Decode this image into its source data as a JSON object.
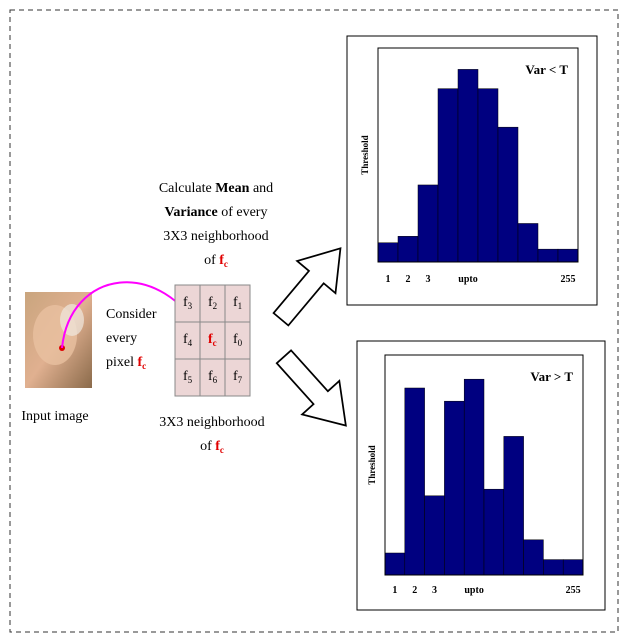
{
  "calc_text": {
    "calculate": "Calculate",
    "mean": "Mean",
    "and": "and",
    "variance": "Variance",
    "of_every": "of every",
    "neighborhood": "3X3 neighborhood",
    "of": "of",
    "f": "f",
    "c": "c"
  },
  "consider_text": {
    "line1": "Consider",
    "line2": "every",
    "pixel": "pixel",
    "f": "f",
    "c": "c"
  },
  "input_label": "Input image",
  "grid_label": {
    "neighborhood": "3X3 neighborhood",
    "of": "of",
    "f": "f",
    "c": "c"
  },
  "grid": [
    [
      {
        "base": "f",
        "sub": "3"
      },
      {
        "base": "f",
        "sub": "2"
      },
      {
        "base": "f",
        "sub": "1"
      }
    ],
    [
      {
        "base": "f",
        "sub": "4"
      },
      {
        "base": "f",
        "sub": "c"
      },
      {
        "base": "f",
        "sub": "0"
      }
    ],
    [
      {
        "base": "f",
        "sub": "5"
      },
      {
        "base": "f",
        "sub": "6"
      },
      {
        "base": "f",
        "sub": "7"
      }
    ]
  ],
  "histograms": [
    {
      "label": "Var < T",
      "y_label": "Threshold",
      "x_labels": [
        "1",
        "2",
        "3",
        "upto",
        "255"
      ],
      "values": [
        9,
        12,
        36,
        81,
        90,
        81,
        63,
        18,
        6,
        6
      ],
      "ylim": [
        0,
        100
      ],
      "color": "#000080"
    },
    {
      "label": "Var > T",
      "y_label": "Threshold",
      "x_labels": [
        "1",
        "2",
        "3",
        "upto",
        "255"
      ],
      "values": [
        10,
        85,
        36,
        79,
        89,
        39,
        63,
        16,
        7,
        7
      ],
      "ylim": [
        0,
        100
      ],
      "color": "#000080"
    }
  ]
}
